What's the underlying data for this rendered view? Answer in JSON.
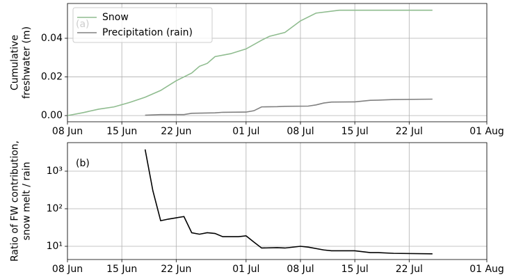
{
  "chart_data": [
    {
      "type": "line",
      "annotation": "(a)",
      "ylabel": [
        "Cumulative",
        "freshwater (m)"
      ],
      "xlim": [
        "08 Jun",
        "01 Aug"
      ],
      "xticks": [
        "08 Jun",
        "15 Jun",
        "22 Jun",
        "01 Jul",
        "08 Jul",
        "15 Jul",
        "22 Jul",
        "01 Aug"
      ],
      "ylim": [
        -0.0032,
        0.058
      ],
      "yticks": [
        {
          "value": 0,
          "label": "0.00"
        },
        0.02,
        0.04
      ],
      "grid": true,
      "legend": "upper left",
      "series": [
        {
          "name": "Snow",
          "color": "#8fbc8f",
          "x": [
            "08 Jun",
            "10 Jun",
            "12 Jun",
            "14 Jun",
            "16 Jun",
            "18 Jun",
            "20 Jun",
            "22 Jun",
            "24 Jun",
            "25 Jun",
            "26 Jun",
            "27 Jun",
            "29 Jun",
            "01 Jul",
            "03 Jul",
            "04 Jul",
            "06 Jul",
            "08 Jul",
            "10 Jul",
            "13 Jul",
            "25 Jul"
          ],
          "values": [
            0.0,
            0.0015,
            0.0033,
            0.0045,
            0.0068,
            0.0095,
            0.013,
            0.018,
            0.022,
            0.0255,
            0.027,
            0.0305,
            0.032,
            0.0345,
            0.039,
            0.041,
            0.043,
            0.049,
            0.053,
            0.0545,
            0.0545
          ]
        },
        {
          "name": "Precipitation (rain)",
          "color": "#808080",
          "x": [
            "18 Jun",
            "20 Jun",
            "23 Jun",
            "24 Jun",
            "27 Jun",
            "28 Jun",
            "01 Jul",
            "02 Jul",
            "03 Jul",
            "05 Jul",
            "06 Jul",
            "09 Jul",
            "10 Jul",
            "11 Jul",
            "12 Jul",
            "15 Jul",
            "17 Jul",
            "18 Jul",
            "20 Jul",
            "25 Jul"
          ],
          "values": [
            0.0002,
            0.0005,
            0.0005,
            0.0012,
            0.0014,
            0.0017,
            0.0018,
            0.0025,
            0.0045,
            0.0046,
            0.0048,
            0.0049,
            0.0055,
            0.0065,
            0.007,
            0.0071,
            0.0079,
            0.008,
            0.0083,
            0.0085
          ]
        }
      ]
    },
    {
      "type": "line",
      "annotation": "(b)",
      "ylabel": [
        "Ratio of FW contribution,",
        "snow melt / rain"
      ],
      "log": true,
      "xlim": [
        "08 Jun",
        "01 Aug"
      ],
      "xticks": [
        "08 Jun",
        "15 Jun",
        "22 Jun",
        "01 Jul",
        "08 Jul",
        "15 Jul",
        "22 Jul",
        "01 Aug"
      ],
      "ylim": [
        4.45,
        5750
      ],
      "yticks": [
        {
          "value": 10,
          "label": "10¹"
        },
        {
          "value": 100,
          "label": "10²"
        },
        {
          "value": 1000,
          "label": "10³"
        }
      ],
      "grid": true,
      "series": [
        {
          "color": "#000000",
          "x": [
            "18 Jun",
            "19 Jun",
            "20 Jun",
            "21 Jun",
            "23 Jun",
            "24 Jun",
            "25 Jun",
            "26 Jun",
            "27 Jun",
            "28 Jun",
            "30 Jun",
            "01 Jul",
            "02 Jul",
            "03 Jul",
            "05 Jul",
            "06 Jul",
            "08 Jul",
            "09 Jul",
            "11 Jul",
            "12 Jul",
            "15 Jul",
            "17 Jul",
            "18 Jul",
            "20 Jul",
            "25 Jul"
          ],
          "values": [
            3800,
            300,
            48,
            53,
            62,
            23,
            21,
            23,
            22,
            18,
            18,
            19,
            13,
            9,
            9.2,
            9,
            10,
            9.5,
            8,
            7.6,
            7.6,
            6.8,
            6.8,
            6.5,
            6.3
          ]
        }
      ]
    }
  ]
}
